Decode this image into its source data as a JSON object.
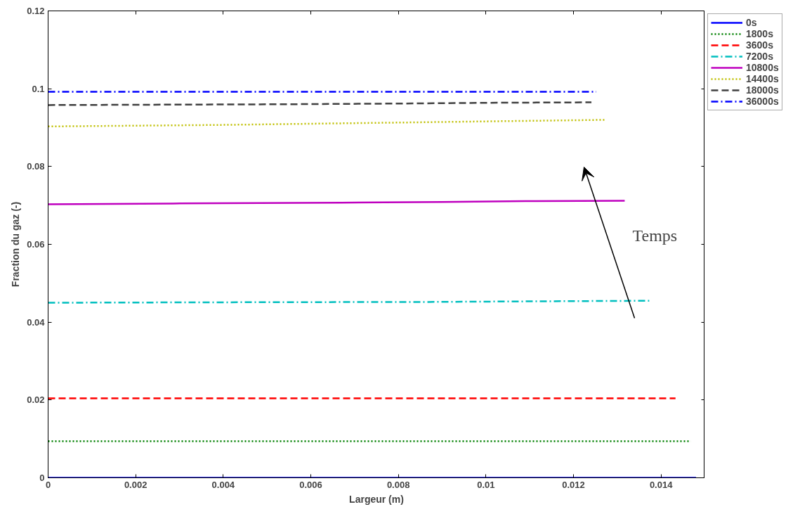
{
  "chart_data": {
    "type": "line",
    "xlabel": "Largeur (m)",
    "ylabel": "Fraction du gaz (-)",
    "xlim": [
      0,
      0.015
    ],
    "ylim": [
      0,
      0.12
    ],
    "xticks": [
      0,
      0.002,
      0.004,
      0.006,
      0.008,
      0.01,
      0.012,
      0.014
    ],
    "yticks": [
      0,
      0.02,
      0.04,
      0.06,
      0.08,
      0.1,
      0.12
    ],
    "grid": false,
    "legend": "top right",
    "marker": "none",
    "annotations": [
      "Temps"
    ],
    "series": [
      {
        "name": "0s",
        "color": "#0000ff",
        "line_style": "solid",
        "x": [
          0,
          0.0148
        ],
        "values": [
          0,
          0
        ]
      },
      {
        "name": "1800s",
        "color": "#008000",
        "line_style": "dotted",
        "x": [
          0,
          0.01468
        ],
        "values": [
          0.0094,
          0.0094
        ]
      },
      {
        "name": "3600s",
        "color": "#ff0000",
        "line_style": "dashed",
        "x": [
          0,
          0.01433
        ],
        "values": [
          0.0204,
          0.0204
        ]
      },
      {
        "name": "7200s",
        "color": "#00bfbf",
        "line_style": "dashdot",
        "x": [
          0,
          0.0036,
          0.0087,
          0.0118,
          0.01373
        ],
        "values": [
          0.045,
          0.0451,
          0.0452,
          0.0454,
          0.0455
        ]
      },
      {
        "name": "10800s",
        "color": "#bf00bf",
        "line_style": "solid",
        "x": [
          0,
          0.00286,
          0.0067,
          0.009,
          0.0109,
          0.01317
        ],
        "values": [
          0.0703,
          0.0705,
          0.0707,
          0.0709,
          0.0711,
          0.0712
        ]
      },
      {
        "name": "14400s",
        "color": "#bfbf00",
        "line_style": "dotted",
        "x": [
          0,
          0.002,
          0.004,
          0.006,
          0.008,
          0.01,
          0.01275
        ],
        "values": [
          0.0903,
          0.0905,
          0.0907,
          0.091,
          0.0913,
          0.0916,
          0.092
        ]
      },
      {
        "name": "18000s",
        "color": "#404040",
        "line_style": "dashed",
        "x": [
          0,
          0.0053,
          0.0081,
          0.0103,
          0.01241
        ],
        "values": [
          0.0958,
          0.096,
          0.0962,
          0.0964,
          0.0965
        ]
      },
      {
        "name": "36000s",
        "color": "#0000ff",
        "line_style": "dashdot",
        "x": [
          0,
          0.01252
        ],
        "values": [
          0.0992,
          0.0992
        ]
      }
    ]
  }
}
